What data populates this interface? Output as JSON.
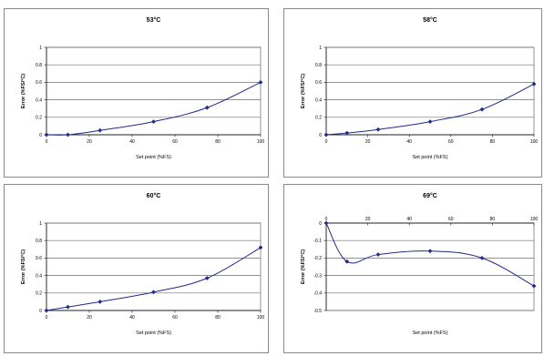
{
  "chart_data": [
    {
      "type": "line",
      "title": "53°C",
      "xlabel": "Set point (%FS)",
      "ylabel": "Error (%FS/°C)",
      "xlim": [
        0,
        100
      ],
      "ylim": [
        0,
        1
      ],
      "xticks": [
        0,
        20,
        40,
        60,
        80,
        100
      ],
      "xtick_labels": [
        "0",
        "20",
        "40",
        "60",
        "80",
        "100"
      ],
      "yticks": [
        0,
        0.2,
        0.4,
        0.6,
        0.8,
        1
      ],
      "ytick_labels": [
        "0",
        "0.2",
        "0.4",
        "0.6",
        "0.8",
        "1"
      ],
      "grid": "horizontal",
      "color": "#1f2a8a",
      "x": [
        0,
        10,
        25,
        50,
        75,
        100
      ],
      "y": [
        0,
        0,
        0.05,
        0.15,
        0.31,
        0.6
      ]
    },
    {
      "type": "line",
      "title": "58°C",
      "xlabel": "Set point (%FS)",
      "ylabel": "Error (%FS/°C)",
      "xlim": [
        0,
        100
      ],
      "ylim": [
        0,
        1
      ],
      "xticks": [
        0,
        20,
        40,
        60,
        80,
        100
      ],
      "xtick_labels": [
        "0",
        "20",
        "40",
        "60",
        "80",
        "100"
      ],
      "yticks": [
        0,
        0.2,
        0.4,
        0.6,
        0.8,
        1
      ],
      "ytick_labels": [
        "0",
        "0.2",
        "0.4",
        "0.6",
        "0.8",
        "1"
      ],
      "grid": "horizontal",
      "color": "#1f2a8a",
      "x": [
        0,
        10,
        25,
        50,
        75,
        100
      ],
      "y": [
        0,
        0.02,
        0.06,
        0.15,
        0.29,
        0.58
      ]
    },
    {
      "type": "line",
      "title": "60°C",
      "xlabel": "Set point (%FS)",
      "ylabel": "Error (%FS/°C)",
      "xlim": [
        0,
        100
      ],
      "ylim": [
        0,
        1
      ],
      "xticks": [
        0,
        20,
        40,
        60,
        80,
        100
      ],
      "xtick_labels": [
        "0",
        "20",
        "40",
        "60",
        "80",
        "100"
      ],
      "yticks": [
        0,
        0.2,
        0.4,
        0.6,
        0.8,
        1
      ],
      "ytick_labels": [
        "0",
        "0.2",
        "0.4",
        "0.6",
        "0.8",
        "1"
      ],
      "grid": "horizontal",
      "color": "#1f2a8a",
      "x": [
        0,
        10,
        25,
        50,
        75,
        100
      ],
      "y": [
        0,
        0.04,
        0.1,
        0.21,
        0.37,
        0.72
      ]
    },
    {
      "type": "line",
      "title": "69°C",
      "xlabel": "Set point (%FS)",
      "ylabel": "Error (%FS/°C)",
      "xlim": [
        0,
        100
      ],
      "ylim": [
        -0.5,
        0
      ],
      "xticks": [
        0,
        20,
        40,
        60,
        80,
        100
      ],
      "xtick_labels": [
        "0",
        "20",
        "40",
        "60",
        "80",
        "100"
      ],
      "yticks": [
        -0.5,
        -0.4,
        -0.3,
        -0.2,
        -0.1,
        0
      ],
      "ytick_labels": [
        "-0.5",
        "-0.4",
        "-0.3",
        "-0.2",
        "-0.1",
        "0"
      ],
      "grid": "horizontal",
      "color": "#1f2a8a",
      "x": [
        0,
        10,
        25,
        50,
        75,
        100
      ],
      "y": [
        0,
        -0.22,
        -0.18,
        -0.16,
        -0.2,
        -0.36
      ]
    }
  ]
}
